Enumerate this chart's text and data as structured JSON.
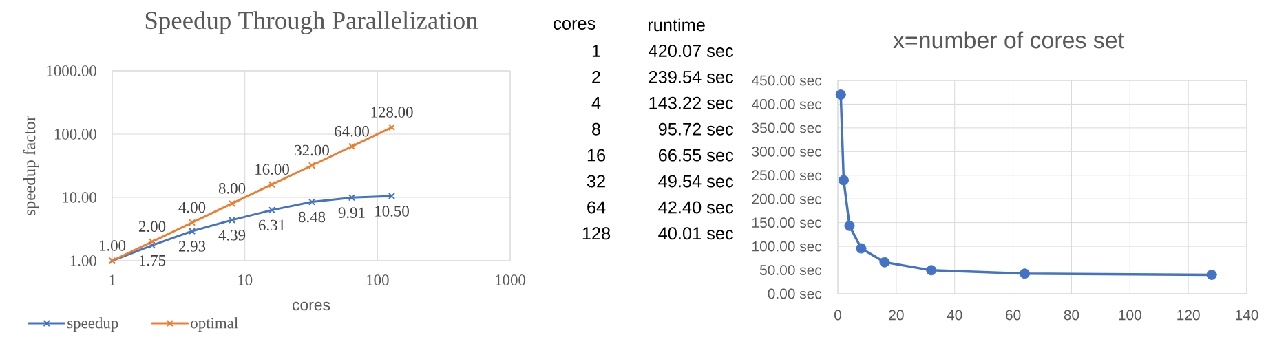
{
  "chart_data": [
    {
      "type": "line",
      "title": "Speedup Through Parallelization",
      "xlabel": "cores",
      "ylabel": "speedup factor",
      "x": [
        1,
        2,
        4,
        8,
        16,
        32,
        64,
        128
      ],
      "series": [
        {
          "name": "speedup",
          "color": "#4472c4",
          "values": [
            1,
            1.75,
            2.93,
            4.39,
            6.31,
            8.48,
            9.91,
            10.5
          ],
          "value_labels": [
            null,
            "1.75",
            "2.93",
            "4.39",
            "6.31",
            "8.48",
            "9.91",
            "10.50"
          ]
        },
        {
          "name": "optimal",
          "color": "#ed7d31",
          "values": [
            1,
            2,
            4,
            8,
            16,
            32,
            64,
            128
          ],
          "value_labels": [
            "1.00",
            "2.00",
            "4.00",
            "8.00",
            "16.00",
            "32.00",
            "64.00",
            "128.00"
          ]
        }
      ],
      "log": "xy",
      "xlim": [
        1,
        1000
      ],
      "ylim": [
        1,
        1000
      ],
      "xticks": [
        1,
        10,
        100,
        1000
      ],
      "yticks": [
        {
          "value": 1,
          "label": "1.00"
        },
        {
          "value": 10,
          "label": "10.00"
        },
        {
          "value": 100,
          "label": "100.00"
        },
        {
          "value": 1000,
          "label": "1000.00"
        }
      ],
      "grid": true,
      "legend": "bottom left",
      "marker": "cross"
    },
    {
      "type": "other",
      "annotations": [
        "cores",
        "runtime",
        "1",
        "420.07 sec",
        "2",
        "239.54 sec",
        "4",
        "143.22 sec",
        "8",
        "95.72 sec",
        "16",
        "66.55 sec",
        "32",
        "49.54 sec",
        "64",
        "42.40 sec",
        "128",
        "40.01 sec"
      ]
    },
    {
      "type": "line",
      "title": "x=number of cores set",
      "x": [
        1,
        2,
        4,
        8,
        16,
        32,
        64,
        128
      ],
      "values": [
        420.07,
        239.54,
        143.22,
        95.72,
        66.55,
        49.54,
        42.4,
        40.01
      ],
      "color": "#4472c4",
      "xlim": [
        0,
        140
      ],
      "xticks": [
        0,
        20,
        40,
        60,
        80,
        100,
        120,
        140
      ],
      "ylim": [
        0,
        450
      ],
      "yticks": [
        {
          "value": 0,
          "label": "0.00 sec"
        },
        {
          "value": 50,
          "label": "50.00 sec"
        },
        {
          "value": 100,
          "label": "100.00 sec"
        },
        {
          "value": 150,
          "label": "150.00 sec"
        },
        {
          "value": 200,
          "label": "200.00 sec"
        },
        {
          "value": 250,
          "label": "250.00 sec"
        },
        {
          "value": 300,
          "label": "300.00 sec"
        },
        {
          "value": 350,
          "label": "350.00 sec"
        },
        {
          "value": 400,
          "label": "400.00 sec"
        },
        {
          "value": 450,
          "label": "450.00 sec"
        }
      ],
      "grid": true,
      "marker": "circle"
    }
  ]
}
